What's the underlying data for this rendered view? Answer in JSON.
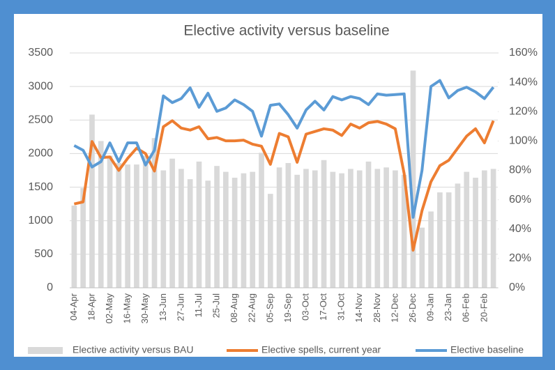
{
  "chart_data": {
    "type": "bar_line",
    "title": "Elective activity versus baseline",
    "categories": [
      "04-Apr",
      null,
      "18-Apr",
      null,
      "02-May",
      null,
      "16-May",
      null,
      "30-May",
      null,
      "13-Jun",
      null,
      "27-Jun",
      null,
      "11-Jul",
      null,
      "25-Jul",
      null,
      "08-Aug",
      null,
      "22-Aug",
      null,
      "05-Sep",
      null,
      "19-Sep",
      null,
      "03-Oct",
      null,
      "17-Oct",
      null,
      "31-Oct",
      null,
      "14-Nov",
      null,
      "28-Nov",
      null,
      "12-Dec",
      null,
      "26-Dec",
      null,
      "09-Jan",
      null,
      "23-Jan",
      null,
      "06-Feb",
      null,
      "20-Feb",
      null
    ],
    "series": [
      {
        "name": "Elective activity versus BAU",
        "kind": "bar",
        "axis": "y2",
        "color": "#d9d9d9",
        "values": [
          56,
          68,
          118,
          100,
          90,
          85,
          84,
          84,
          90,
          102,
          80,
          88,
          81,
          74,
          86,
          73,
          83,
          79,
          75,
          78,
          79,
          92,
          64,
          82,
          85,
          77,
          81,
          80,
          87,
          79,
          78,
          81,
          80,
          86,
          81,
          82,
          80,
          77,
          148,
          41,
          52,
          65,
          65,
          71,
          79,
          75,
          80,
          81
        ]
      },
      {
        "name": "Elective spells, current year",
        "kind": "line",
        "color": "#ed7d31",
        "values": [
          1250,
          1280,
          2180,
          1940,
          1950,
          1750,
          1930,
          2080,
          2000,
          1740,
          2400,
          2490,
          2380,
          2350,
          2400,
          2220,
          2240,
          2190,
          2190,
          2200,
          2140,
          2110,
          1840,
          2300,
          2250,
          1870,
          2290,
          2330,
          2370,
          2350,
          2270,
          2440,
          2380,
          2460,
          2480,
          2440,
          2370,
          1700,
          560,
          1150,
          1580,
          1820,
          1900,
          2080,
          2260,
          2370,
          2160,
          2490
        ]
      },
      {
        "name": "Elective baseline",
        "kind": "line",
        "color": "#5b9bd5",
        "values": [
          2120,
          2050,
          1800,
          1880,
          2160,
          1880,
          2160,
          2160,
          1830,
          2050,
          2860,
          2760,
          2820,
          2980,
          2690,
          2900,
          2630,
          2680,
          2800,
          2730,
          2630,
          2260,
          2720,
          2740,
          2580,
          2380,
          2650,
          2780,
          2650,
          2850,
          2800,
          2850,
          2820,
          2730,
          2890,
          2870,
          2880,
          2890,
          1050,
          1750,
          3000,
          3090,
          2830,
          2940,
          2990,
          2920,
          2820,
          2990
        ]
      }
    ],
    "ylim": [
      0,
      3500
    ],
    "yticks": [
      0,
      500,
      1000,
      1500,
      2000,
      2500,
      3000,
      3500
    ],
    "y2lim": [
      0,
      160
    ],
    "y2ticks": [
      {
        "value": 0,
        "label": "0%"
      },
      {
        "value": 20,
        "label": "20%"
      },
      {
        "value": 40,
        "label": "40%"
      },
      {
        "value": 60,
        "label": "60%"
      },
      {
        "value": 80,
        "label": "80%"
      },
      {
        "value": 100,
        "label": "100%"
      },
      {
        "value": 120,
        "label": "120%"
      },
      {
        "value": 140,
        "label": "140%"
      },
      {
        "value": 160,
        "label": "160%"
      }
    ],
    "legend": "bottom"
  }
}
